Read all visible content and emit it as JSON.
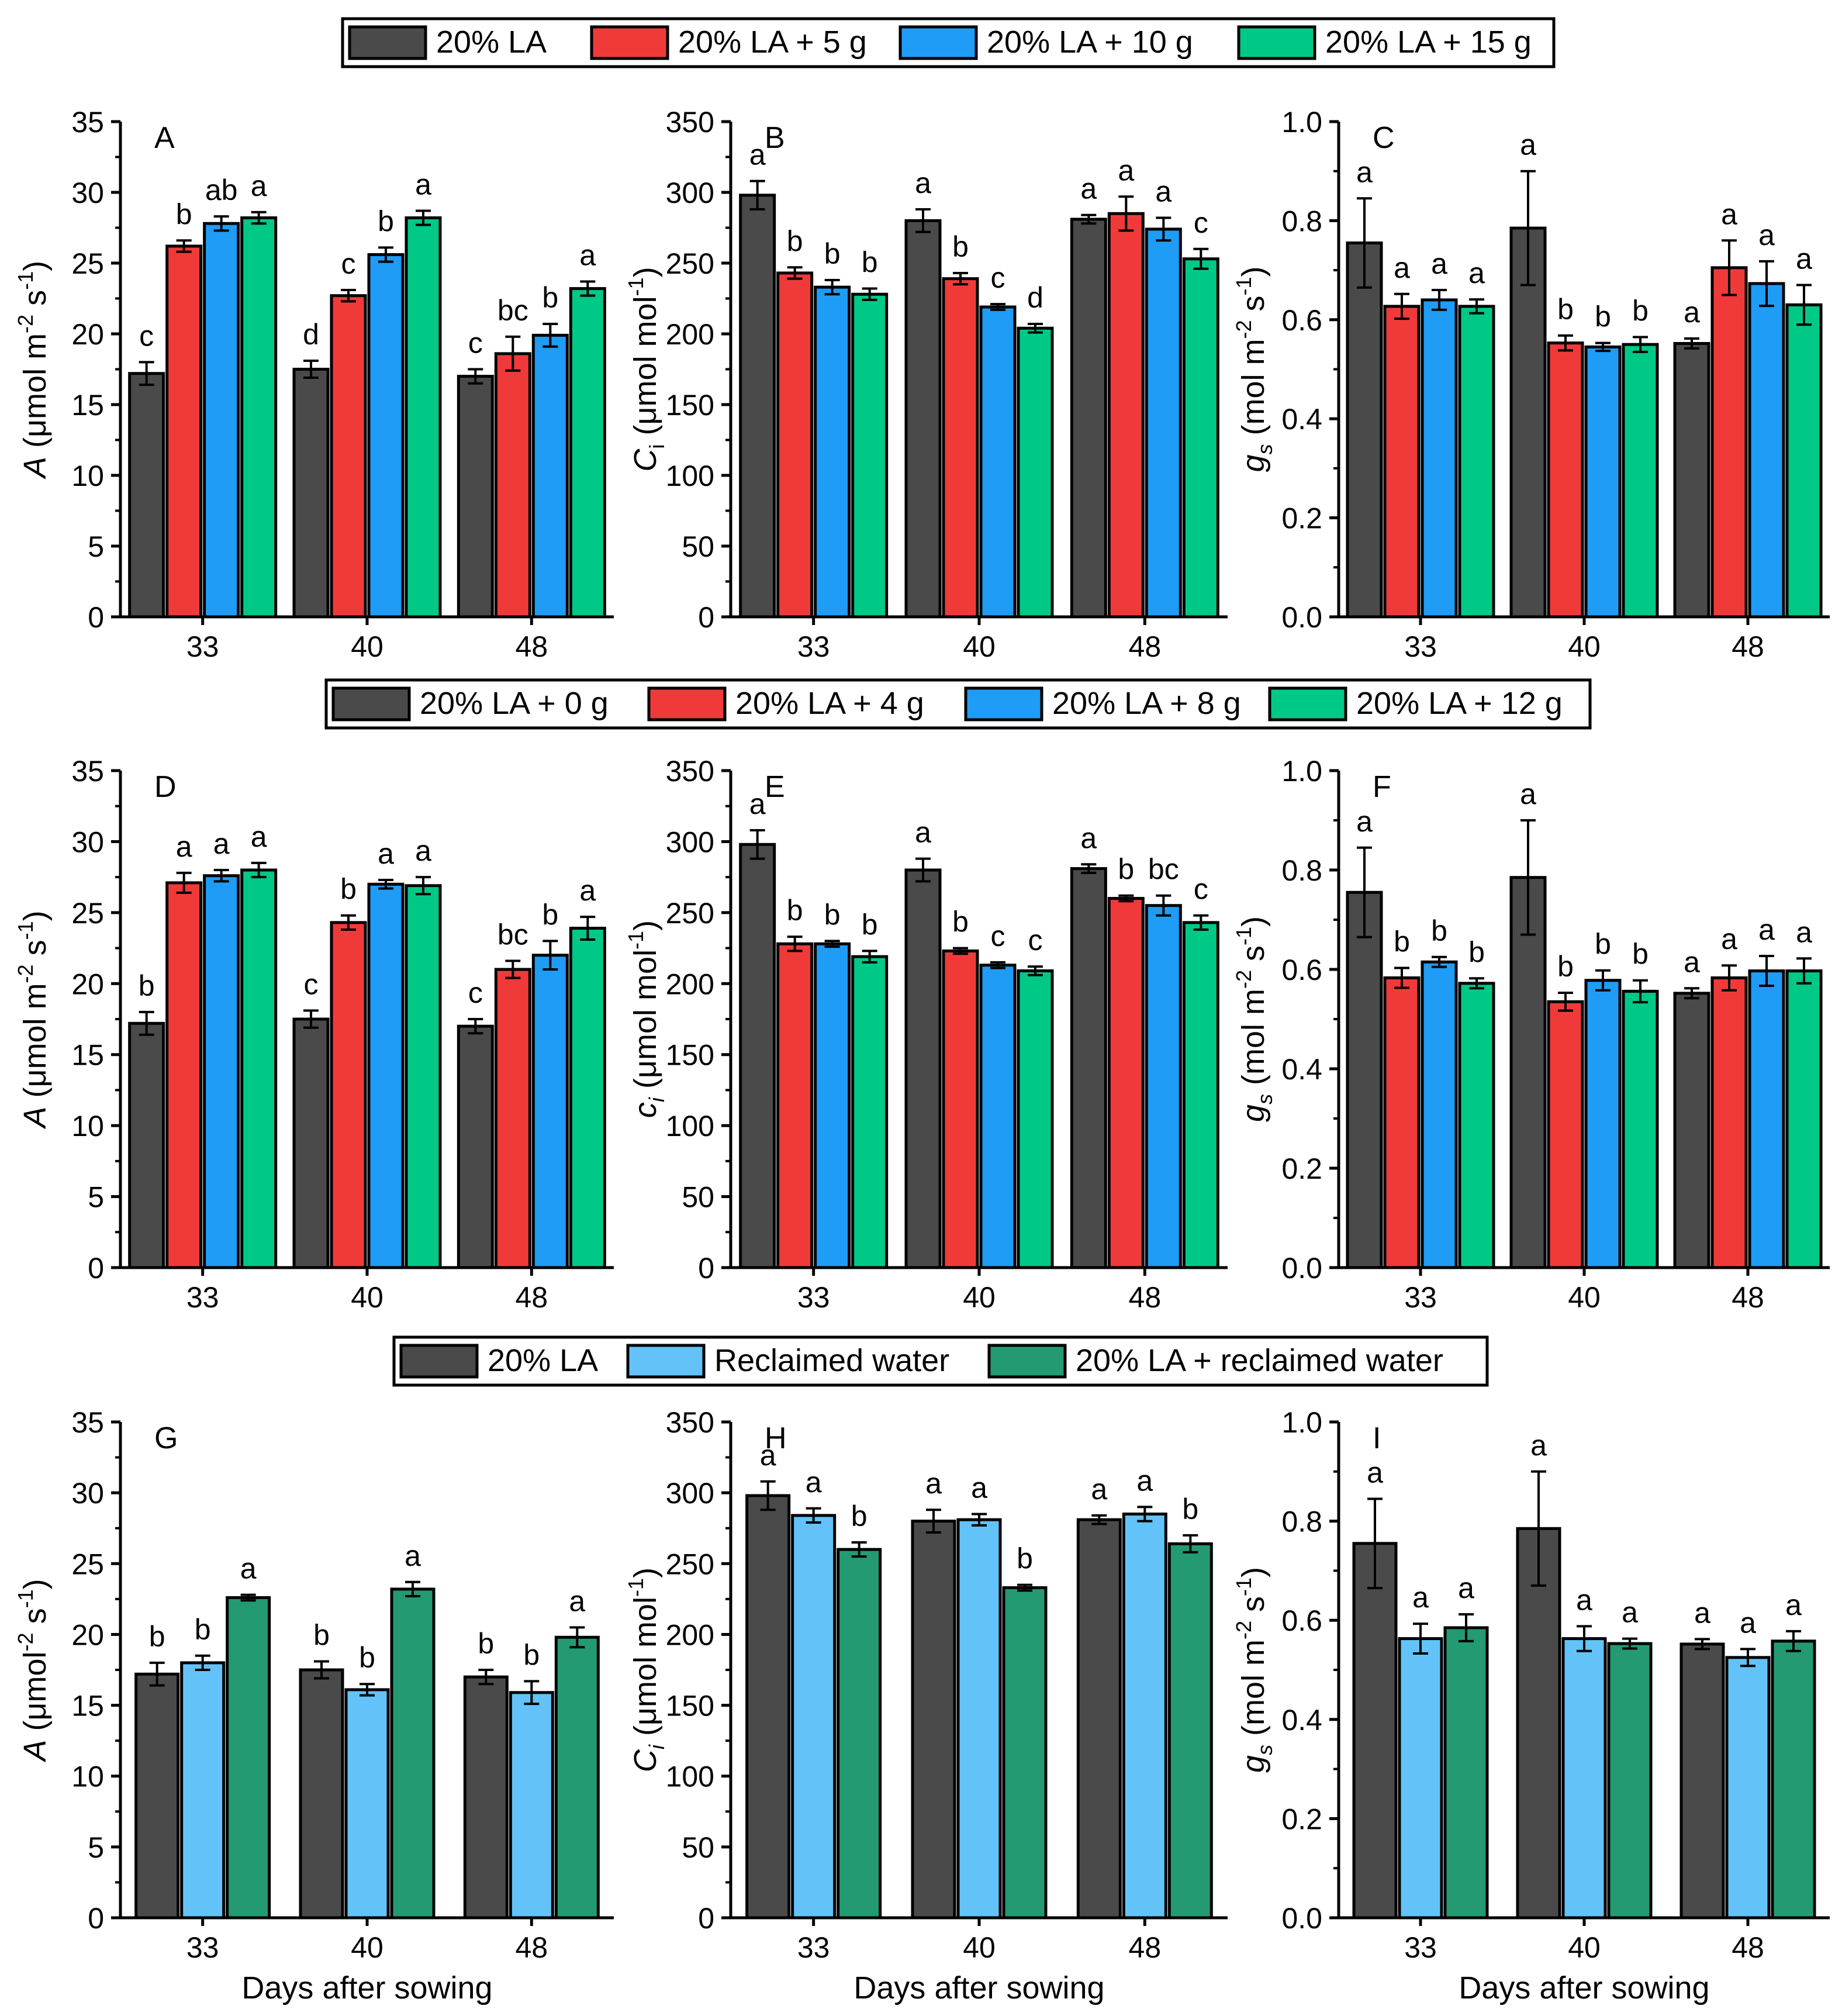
{
  "colors": {
    "dark_gray": "#4a4a4a",
    "red": "#f03a3a",
    "blue": "#1f9cf5",
    "green": "#00c987",
    "light_blue": "#63c3f8",
    "dark_green": "#239a72",
    "axis": "#000000"
  },
  "legends": [
    {
      "items": [
        {
          "label": "20% LA",
          "color": "#4a4a4a"
        },
        {
          "label": "20% LA + 5 g",
          "color": "#f03a3a"
        },
        {
          "label": "20% LA + 10 g",
          "color": "#1f9cf5"
        },
        {
          "label": "20% LA + 15 g",
          "color": "#00c987"
        }
      ]
    },
    {
      "items": [
        {
          "label": "20% LA + 0 g",
          "color": "#4a4a4a"
        },
        {
          "label": "20% LA + 4 g",
          "color": "#f03a3a"
        },
        {
          "label": "20% LA + 8 g",
          "color": "#1f9cf5"
        },
        {
          "label": "20% LA + 12 g",
          "color": "#00c987"
        }
      ]
    },
    {
      "items": [
        {
          "label": "20% LA",
          "color": "#4a4a4a"
        },
        {
          "label": "Reclaimed water",
          "color": "#63c3f8"
        },
        {
          "label": "20% LA + reclaimed water",
          "color": "#239a72"
        }
      ]
    }
  ],
  "chart_data": [
    {
      "type": "bar",
      "panel": "A",
      "categories": [
        "33",
        "40",
        "48"
      ],
      "ylabel_main": "A",
      "ylabel_unit": "μmol m",
      "ylabel_exp1": "-2",
      "ylabel_mid": " s",
      "ylabel_exp2": "-1",
      "ylim": [
        0,
        35
      ],
      "yticks": [
        "0",
        "5",
        "10",
        "15",
        "20",
        "25",
        "30",
        "35"
      ],
      "xlabel": "",
      "series": [
        {
          "name": "20% LA",
          "color": "#4a4a4a",
          "values": [
            17.2,
            17.5,
            17.0
          ],
          "errors": [
            0.8,
            0.6,
            0.5
          ],
          "letters": [
            "c",
            "d",
            "c"
          ]
        },
        {
          "name": "20% LA + 5 g",
          "color": "#f03a3a",
          "values": [
            26.2,
            22.7,
            18.6
          ],
          "errors": [
            0.4,
            0.4,
            1.2
          ],
          "letters": [
            "b",
            "c",
            "bc"
          ]
        },
        {
          "name": "20% LA + 10 g",
          "color": "#1f9cf5",
          "values": [
            27.8,
            25.6,
            19.9
          ],
          "errors": [
            0.5,
            0.5,
            0.8
          ],
          "letters": [
            "ab",
            "b",
            "b"
          ]
        },
        {
          "name": "20% LA + 15 g",
          "color": "#00c987",
          "values": [
            28.2,
            28.2,
            23.2
          ],
          "errors": [
            0.4,
            0.5,
            0.5
          ],
          "letters": [
            "a",
            "a",
            "a"
          ]
        }
      ]
    },
    {
      "type": "bar",
      "panel": "B",
      "categories": [
        "33",
        "40",
        "48"
      ],
      "ylabel_main": "C",
      "ylabel_sub": "i",
      "ylabel_unit": "μmol mol",
      "ylabel_exp1": "-1",
      "ylim": [
        0,
        350
      ],
      "yticks": [
        "0",
        "50",
        "100",
        "150",
        "200",
        "250",
        "300",
        "350"
      ],
      "xlabel": "",
      "series": [
        {
          "name": "20% LA",
          "color": "#4a4a4a",
          "values": [
            298,
            280,
            281
          ],
          "errors": [
            10,
            8,
            3
          ],
          "letters": [
            "a",
            "a",
            "a"
          ]
        },
        {
          "name": "20% LA + 5 g",
          "color": "#f03a3a",
          "values": [
            243,
            239,
            285
          ],
          "errors": [
            4,
            4,
            12
          ],
          "letters": [
            "b",
            "b",
            "a"
          ]
        },
        {
          "name": "20% LA + 10 g",
          "color": "#1f9cf5",
          "values": [
            233,
            219,
            274
          ],
          "errors": [
            5,
            2,
            8
          ],
          "letters": [
            "b",
            "c",
            "a"
          ]
        },
        {
          "name": "20% LA + 15 g",
          "color": "#00c987",
          "values": [
            228,
            204,
            253
          ],
          "errors": [
            4,
            3,
            7
          ],
          "letters": [
            "b",
            "d",
            "c"
          ]
        }
      ]
    },
    {
      "type": "bar",
      "panel": "C",
      "categories": [
        "33",
        "40",
        "48"
      ],
      "ylabel_main": "g",
      "ylabel_sub": "s",
      "ylabel_unit": "mol m",
      "ylabel_exp1": "-2",
      "ylabel_mid": " s",
      "ylabel_exp2": "-1",
      "ylim": [
        0,
        1.0
      ],
      "yticks": [
        "0.0",
        "0.2",
        "0.4",
        "0.6",
        "0.8",
        "1.0"
      ],
      "xlabel": "",
      "series": [
        {
          "name": "20% LA",
          "color": "#4a4a4a",
          "values": [
            0.755,
            0.785,
            0.552
          ],
          "errors": [
            0.09,
            0.115,
            0.01
          ],
          "letters": [
            "a",
            "a",
            "a"
          ]
        },
        {
          "name": "20% LA + 5 g",
          "color": "#f03a3a",
          "values": [
            0.627,
            0.553,
            0.705
          ],
          "errors": [
            0.025,
            0.015,
            0.055
          ],
          "letters": [
            "a",
            "b",
            "a"
          ]
        },
        {
          "name": "20% LA + 10 g",
          "color": "#1f9cf5",
          "values": [
            0.64,
            0.545,
            0.673
          ],
          "errors": [
            0.02,
            0.008,
            0.045
          ],
          "letters": [
            "a",
            "b",
            "a"
          ]
        },
        {
          "name": "20% LA + 15 g",
          "color": "#00c987",
          "values": [
            0.627,
            0.55,
            0.63
          ],
          "errors": [
            0.014,
            0.015,
            0.04
          ],
          "letters": [
            "a",
            "b",
            "a"
          ]
        }
      ]
    },
    {
      "type": "bar",
      "panel": "D",
      "categories": [
        "33",
        "40",
        "48"
      ],
      "ylabel_main": "A",
      "ylabel_unit": "μmol m",
      "ylabel_exp1": "-2",
      "ylabel_mid": " s",
      "ylabel_exp2": "-1",
      "ylim": [
        0,
        35
      ],
      "yticks": [
        "0",
        "5",
        "10",
        "15",
        "20",
        "25",
        "30",
        "35"
      ],
      "xlabel": "",
      "series": [
        {
          "name": "20% LA + 0 g",
          "color": "#4a4a4a",
          "values": [
            17.2,
            17.5,
            17.0
          ],
          "errors": [
            0.8,
            0.6,
            0.5
          ],
          "letters": [
            "b",
            "c",
            "c"
          ]
        },
        {
          "name": "20% LA + 4 g",
          "color": "#f03a3a",
          "values": [
            27.1,
            24.3,
            21.0
          ],
          "errors": [
            0.7,
            0.5,
            0.6
          ],
          "letters": [
            "a",
            "b",
            "bc"
          ]
        },
        {
          "name": "20% LA + 8 g",
          "color": "#1f9cf5",
          "values": [
            27.6,
            27.0,
            22.0
          ],
          "errors": [
            0.4,
            0.3,
            1.0
          ],
          "letters": [
            "a",
            "a",
            "b"
          ]
        },
        {
          "name": "20% LA + 12 g",
          "color": "#00c987",
          "values": [
            28.0,
            26.9,
            23.9
          ],
          "errors": [
            0.5,
            0.6,
            0.8
          ],
          "letters": [
            "a",
            "a",
            "a"
          ]
        }
      ]
    },
    {
      "type": "bar",
      "panel": "E",
      "categories": [
        "33",
        "40",
        "48"
      ],
      "ylabel_main": "c",
      "ylabel_sub": "i",
      "ylabel_unit": "μmol mol",
      "ylabel_exp1": "-1",
      "ylim": [
        0,
        350
      ],
      "yticks": [
        "0",
        "50",
        "100",
        "150",
        "200",
        "250",
        "300",
        "350"
      ],
      "xlabel": "",
      "series": [
        {
          "name": "20% LA + 0 g",
          "color": "#4a4a4a",
          "values": [
            298,
            280,
            281
          ],
          "errors": [
            10,
            8,
            3
          ],
          "letters": [
            "a",
            "a",
            "a"
          ]
        },
        {
          "name": "20% LA + 4 g",
          "color": "#f03a3a",
          "values": [
            228,
            223,
            260
          ],
          "errors": [
            5,
            2,
            2
          ],
          "letters": [
            "b",
            "b",
            "b"
          ]
        },
        {
          "name": "20% LA + 8 g",
          "color": "#1f9cf5",
          "values": [
            228,
            213,
            255
          ],
          "errors": [
            2,
            2,
            7
          ],
          "letters": [
            "b",
            "c",
            "bc"
          ]
        },
        {
          "name": "20% LA + 12 g",
          "color": "#00c987",
          "values": [
            219,
            209,
            243
          ],
          "errors": [
            4,
            3,
            5
          ],
          "letters": [
            "b",
            "c",
            "c"
          ]
        }
      ]
    },
    {
      "type": "bar",
      "panel": "F",
      "categories": [
        "33",
        "40",
        "48"
      ],
      "ylabel_main": "g",
      "ylabel_sub": "s",
      "ylabel_unit": "mol m",
      "ylabel_exp1": "-2",
      "ylabel_mid": " s",
      "ylabel_exp2": "-1",
      "ylim": [
        0,
        1.0
      ],
      "yticks": [
        "0.0",
        "0.2",
        "0.4",
        "0.6",
        "0.8",
        "1.0"
      ],
      "xlabel": "",
      "series": [
        {
          "name": "20% LA + 0 g",
          "color": "#4a4a4a",
          "values": [
            0.755,
            0.785,
            0.552
          ],
          "errors": [
            0.09,
            0.115,
            0.01
          ],
          "letters": [
            "a",
            "a",
            "a"
          ]
        },
        {
          "name": "20% LA + 4 g",
          "color": "#f03a3a",
          "values": [
            0.583,
            0.535,
            0.583
          ],
          "errors": [
            0.02,
            0.018,
            0.025
          ],
          "letters": [
            "b",
            "b",
            "a"
          ]
        },
        {
          "name": "20% LA + 8 g",
          "color": "#1f9cf5",
          "values": [
            0.615,
            0.578,
            0.597
          ],
          "errors": [
            0.01,
            0.02,
            0.03
          ],
          "letters": [
            "b",
            "b",
            "a"
          ]
        },
        {
          "name": "20% LA + 12 g",
          "color": "#00c987",
          "values": [
            0.572,
            0.556,
            0.597
          ],
          "errors": [
            0.01,
            0.022,
            0.025
          ],
          "letters": [
            "b",
            "b",
            "a"
          ]
        }
      ]
    },
    {
      "type": "bar",
      "panel": "G",
      "categories": [
        "33",
        "40",
        "48"
      ],
      "ylabel_main": "A",
      "ylabel_unit": "μmol",
      "ylabel_exp1": "-2",
      "ylabel_mid": " s",
      "ylabel_exp2": "-1",
      "ylim": [
        0,
        35
      ],
      "yticks": [
        "0",
        "5",
        "10",
        "15",
        "20",
        "25",
        "30",
        "35"
      ],
      "xlabel": "Days after sowing",
      "series": [
        {
          "name": "20% LA",
          "color": "#4a4a4a",
          "values": [
            17.2,
            17.5,
            17.0
          ],
          "errors": [
            0.8,
            0.6,
            0.5
          ],
          "letters": [
            "b",
            "b",
            "b"
          ]
        },
        {
          "name": "Reclaimed water",
          "color": "#63c3f8",
          "values": [
            18.0,
            16.1,
            15.9
          ],
          "errors": [
            0.5,
            0.4,
            0.8
          ],
          "letters": [
            "b",
            "b",
            "b"
          ]
        },
        {
          "name": "20% LA + reclaimed water",
          "color": "#239a72",
          "values": [
            22.6,
            23.2,
            19.8
          ],
          "errors": [
            0.2,
            0.5,
            0.7
          ],
          "letters": [
            "a",
            "a",
            "a"
          ]
        }
      ]
    },
    {
      "type": "bar",
      "panel": "H",
      "categories": [
        "33",
        "40",
        "48"
      ],
      "ylabel_main": "C",
      "ylabel_sub": "i",
      "ylabel_unit": "μmol mol",
      "ylabel_exp1": "-1",
      "ylim": [
        0,
        350
      ],
      "yticks": [
        "0",
        "50",
        "100",
        "150",
        "200",
        "250",
        "300",
        "350"
      ],
      "xlabel": "Days after sowing",
      "series": [
        {
          "name": "20% LA",
          "color": "#4a4a4a",
          "values": [
            298,
            280,
            281
          ],
          "errors": [
            10,
            8,
            3
          ],
          "letters": [
            "a",
            "a",
            "a"
          ]
        },
        {
          "name": "Reclaimed water",
          "color": "#63c3f8",
          "values": [
            284,
            281,
            285
          ],
          "errors": [
            5,
            4,
            5
          ],
          "letters": [
            "a",
            "a",
            "a"
          ]
        },
        {
          "name": "20% LA + reclaimed water",
          "color": "#239a72",
          "values": [
            260,
            233,
            264
          ],
          "errors": [
            5,
            2,
            6
          ],
          "letters": [
            "b",
            "b",
            "b"
          ]
        }
      ]
    },
    {
      "type": "bar",
      "panel": "I",
      "categories": [
        "33",
        "40",
        "48"
      ],
      "ylabel_main": "g",
      "ylabel_sub": "s",
      "ylabel_unit": "mol m",
      "ylabel_exp1": "-2",
      "ylabel_mid": " s",
      "ylabel_exp2": "-1",
      "ylim": [
        0,
        1.0
      ],
      "yticks": [
        "0.0",
        "0.2",
        "0.4",
        "0.6",
        "0.8",
        "1.0"
      ],
      "xlabel": "Days after sowing",
      "series": [
        {
          "name": "20% LA",
          "color": "#4a4a4a",
          "values": [
            0.755,
            0.785,
            0.552
          ],
          "errors": [
            0.09,
            0.115,
            0.01
          ],
          "letters": [
            "a",
            "a",
            "a"
          ]
        },
        {
          "name": "Reclaimed water",
          "color": "#63c3f8",
          "values": [
            0.563,
            0.563,
            0.525
          ],
          "errors": [
            0.03,
            0.025,
            0.017
          ],
          "letters": [
            "a",
            "a",
            "a"
          ]
        },
        {
          "name": "20% LA + reclaimed water",
          "color": "#239a72",
          "values": [
            0.585,
            0.553,
            0.558
          ],
          "errors": [
            0.027,
            0.01,
            0.02
          ],
          "letters": [
            "a",
            "a",
            "a"
          ]
        }
      ]
    }
  ]
}
